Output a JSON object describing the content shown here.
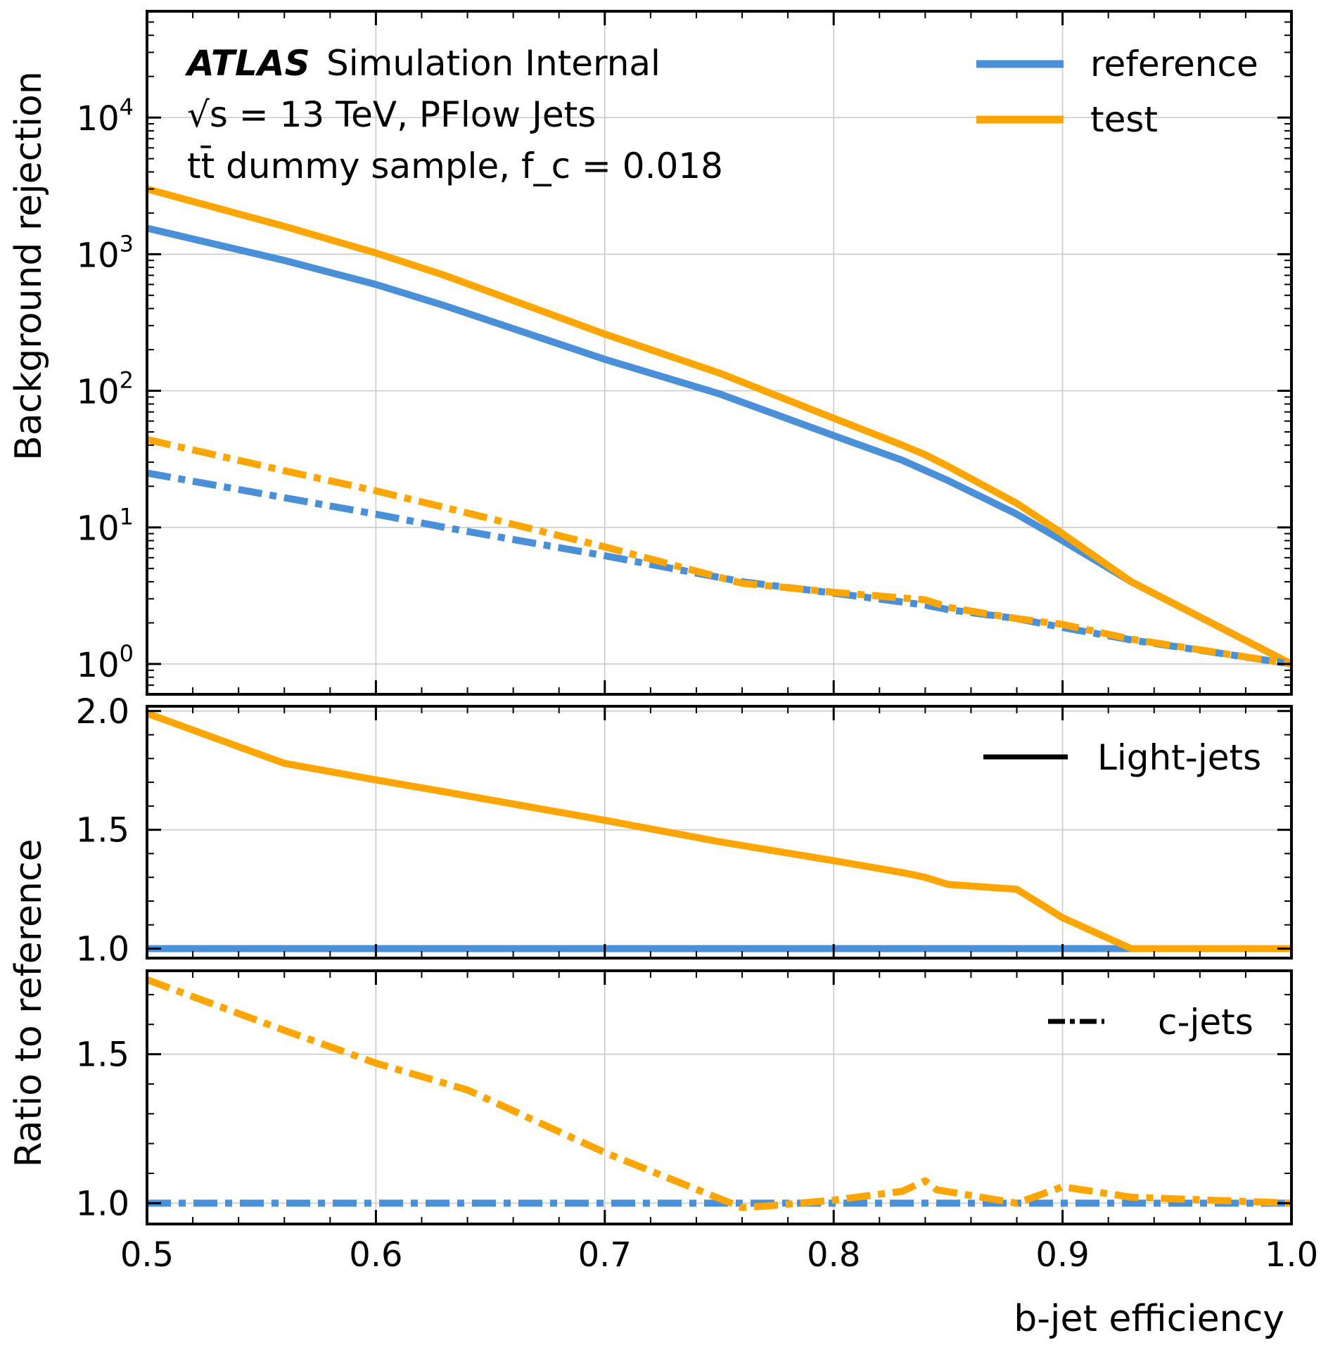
{
  "annotation": {
    "atlas": "ATLAS",
    "status": "Simulation Internal",
    "energy": "√s = 13 TeV, PFlow Jets",
    "sample": "tt̄ dummy sample, f_c = 0.018"
  },
  "legend_top": {
    "reference": "reference",
    "test": "test"
  },
  "legend_mid": {
    "light": "Light-jets"
  },
  "legend_bot": {
    "c": "c-jets"
  },
  "axes": {
    "ylabel_top": "Background rejection",
    "ylabel_ratio": "Ratio to reference",
    "xlabel": "b-jet efficiency"
  },
  "colors": {
    "reference": "#4a90d9",
    "test": "#ffa500"
  },
  "chart_data": [
    {
      "type": "line",
      "panel": "main",
      "yscale": "log",
      "xlim": [
        0.5,
        1.0
      ],
      "ylim": [
        0.6,
        60000
      ],
      "x_ticks": [
        "0.5",
        "0.6",
        "0.7",
        "0.8",
        "0.9",
        "1.0"
      ],
      "y_ticks": [
        "10^0",
        "10^1",
        "10^2",
        "10^3",
        "10^4"
      ],
      "grid": true,
      "legend": "top-right",
      "series": [
        {
          "name": "reference",
          "flavour": "light",
          "style": "solid",
          "color": "#4a90d9",
          "x": [
            0.5,
            0.56,
            0.6,
            0.63,
            0.7,
            0.75,
            0.8,
            0.83,
            0.85,
            0.88,
            0.9,
            0.93,
            1.0
          ],
          "y": [
            1550,
            900,
            600,
            420,
            170,
            95,
            47,
            31,
            22,
            12.5,
            8,
            4,
            1
          ]
        },
        {
          "name": "test",
          "flavour": "light",
          "style": "solid",
          "color": "#ffa500",
          "x": [
            0.5,
            0.56,
            0.6,
            0.63,
            0.7,
            0.75,
            0.8,
            0.83,
            0.84,
            0.85,
            0.88,
            0.9,
            0.93,
            1.0
          ],
          "y": [
            3000,
            1600,
            1020,
            700,
            260,
            135,
            63,
            40,
            34,
            28,
            15,
            9,
            4,
            1
          ]
        },
        {
          "name": "reference",
          "flavour": "c",
          "style": "dashdot",
          "color": "#4a90d9",
          "x": [
            0.5,
            0.56,
            0.6,
            0.63,
            0.7,
            0.76,
            0.8,
            0.84,
            0.85,
            0.88,
            0.9,
            0.93,
            1.0
          ],
          "y": [
            25,
            16.5,
            12.5,
            10,
            6.2,
            4.0,
            3.3,
            2.7,
            2.5,
            2.15,
            1.85,
            1.5,
            1
          ]
        },
        {
          "name": "test",
          "flavour": "c",
          "style": "dashdot",
          "color": "#ffa500",
          "x": [
            0.5,
            0.56,
            0.6,
            0.63,
            0.7,
            0.76,
            0.8,
            0.84,
            0.85,
            0.88,
            0.9,
            0.93,
            1.0
          ],
          "y": [
            44,
            26,
            18.5,
            14,
            7.2,
            3.9,
            3.35,
            2.95,
            2.6,
            2.15,
            1.95,
            1.52,
            1
          ]
        }
      ]
    },
    {
      "type": "line",
      "panel": "ratio-light",
      "xlim": [
        0.5,
        1.0
      ],
      "ylim": [
        0.96,
        2.02
      ],
      "y_ticks": [
        "1.0",
        "1.5",
        "2.0"
      ],
      "grid": true,
      "legend": "top-right",
      "series": [
        {
          "name": "reference",
          "style": "solid",
          "color": "#4a90d9",
          "x": [
            0.5,
            1.0
          ],
          "y": [
            1.0,
            1.0
          ]
        },
        {
          "name": "test",
          "style": "solid",
          "color": "#ffa500",
          "x": [
            0.5,
            0.56,
            0.6,
            0.63,
            0.7,
            0.75,
            0.8,
            0.83,
            0.84,
            0.85,
            0.88,
            0.9,
            0.93,
            1.0
          ],
          "y": [
            1.99,
            1.78,
            1.71,
            1.66,
            1.54,
            1.45,
            1.37,
            1.32,
            1.3,
            1.27,
            1.25,
            1.13,
            1.0,
            1.0
          ]
        }
      ]
    },
    {
      "type": "line",
      "panel": "ratio-c",
      "xlim": [
        0.5,
        1.0
      ],
      "ylim": [
        0.93,
        1.78
      ],
      "y_ticks": [
        "1.0",
        "1.5"
      ],
      "grid": true,
      "legend": "top-right",
      "series": [
        {
          "name": "reference",
          "style": "dashdot",
          "color": "#4a90d9",
          "x": [
            0.5,
            1.0
          ],
          "y": [
            1.0,
            1.0
          ]
        },
        {
          "name": "test",
          "style": "dashdot",
          "color": "#ffa500",
          "x": [
            0.5,
            0.56,
            0.6,
            0.64,
            0.7,
            0.76,
            0.77,
            0.8,
            0.83,
            0.84,
            0.845,
            0.88,
            0.9,
            0.93,
            1.0
          ],
          "y": [
            1.75,
            1.58,
            1.47,
            1.38,
            1.17,
            0.985,
            0.99,
            1.01,
            1.04,
            1.075,
            1.045,
            1.0,
            1.055,
            1.02,
            1.0
          ]
        }
      ]
    }
  ]
}
